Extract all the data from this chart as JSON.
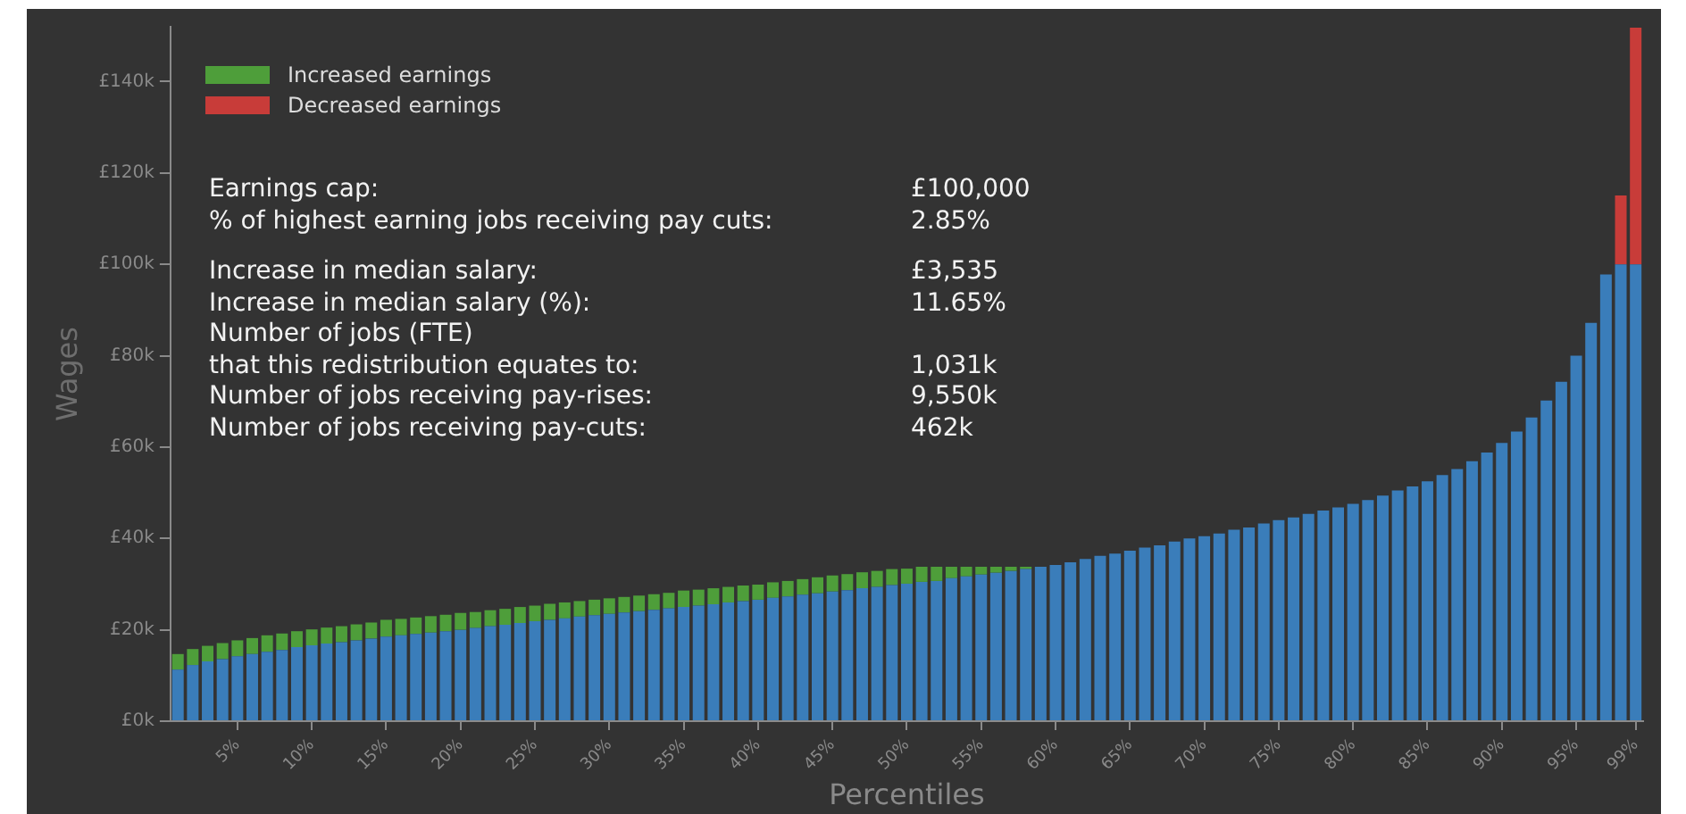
{
  "chart_data": {
    "type": "bar",
    "stacked": true,
    "xlabel": "Percentiles",
    "ylabel": "Wages",
    "legend": "top left",
    "categories": [
      null,
      null,
      null,
      null,
      "5%",
      null,
      null,
      null,
      null,
      "10%",
      null,
      null,
      null,
      null,
      "15%",
      null,
      null,
      null,
      null,
      "20%",
      null,
      null,
      null,
      null,
      "25%",
      null,
      null,
      null,
      null,
      "30%",
      null,
      null,
      null,
      null,
      "35%",
      null,
      null,
      null,
      null,
      "40%",
      null,
      null,
      null,
      null,
      "45%",
      null,
      null,
      null,
      null,
      "50%",
      null,
      null,
      null,
      null,
      "55%",
      null,
      null,
      null,
      null,
      "60%",
      null,
      null,
      null,
      null,
      "65%",
      null,
      null,
      null,
      null,
      "70%",
      null,
      null,
      null,
      null,
      "75%",
      null,
      null,
      null,
      null,
      "80%",
      null,
      null,
      null,
      null,
      "85%",
      null,
      null,
      null,
      null,
      "90%",
      null,
      null,
      null,
      null,
      "95%",
      null,
      null,
      null,
      "99%"
    ],
    "ylim": [
      0,
      152
    ],
    "yticks": [
      {
        "value": 0,
        "label": "£0k"
      },
      {
        "value": 20,
        "label": "£20k"
      },
      {
        "value": 40,
        "label": "£40k"
      },
      {
        "value": 60,
        "label": "£60k"
      },
      {
        "value": 80,
        "label": "£80k"
      },
      {
        "value": 100,
        "label": "£100k"
      },
      {
        "value": 120,
        "label": "£120k"
      },
      {
        "value": 140,
        "label": "£140k"
      }
    ],
    "series": [
      {
        "color": "#3a7dba",
        "values": [
          11.3,
          12.3,
          13.1,
          13.6,
          14.2,
          14.7,
          15.2,
          15.6,
          16.2,
          16.6,
          17.0,
          17.3,
          17.7,
          18.1,
          18.5,
          18.8,
          19.1,
          19.4,
          19.7,
          20.0,
          20.4,
          20.8,
          21.1,
          21.5,
          21.9,
          22.2,
          22.5,
          22.9,
          23.2,
          23.5,
          23.8,
          24.1,
          24.4,
          24.7,
          25.0,
          25.3,
          25.6,
          26.0,
          26.3,
          26.6,
          27.0,
          27.3,
          27.7,
          28.0,
          28.4,
          28.7,
          29.1,
          29.4,
          29.8,
          30.1,
          30.5,
          30.7,
          31.3,
          31.7,
          32.1,
          32.5,
          32.9,
          33.3,
          33.8,
          34.2,
          34.8,
          35.5,
          36.2,
          36.7,
          37.3,
          38.0,
          38.5,
          39.3,
          40.0,
          40.5,
          41.1,
          41.9,
          42.4,
          43.3,
          44.0,
          44.6,
          45.4,
          46.1,
          46.8,
          47.6,
          48.4,
          49.4,
          50.5,
          51.4,
          52.5,
          53.9,
          55.2,
          56.9,
          58.8,
          60.9,
          63.4,
          66.5,
          70.2,
          74.3,
          80.0,
          87.2,
          97.8,
          100,
          100
        ]
      },
      {
        "name": "Increased earnings",
        "color": "#4e9e3a",
        "values": [
          3.4,
          3.5,
          3.4,
          3.5,
          3.5,
          3.5,
          3.6,
          3.6,
          3.5,
          3.5,
          3.5,
          3.5,
          3.5,
          3.5,
          3.7,
          3.6,
          3.6,
          3.6,
          3.6,
          3.7,
          3.5,
          3.5,
          3.5,
          3.5,
          3.4,
          3.5,
          3.5,
          3.4,
          3.4,
          3.4,
          3.4,
          3.4,
          3.4,
          3.4,
          3.6,
          3.5,
          3.5,
          3.4,
          3.4,
          3.3,
          3.4,
          3.4,
          3.4,
          3.5,
          3.5,
          3.5,
          3.5,
          3.5,
          3.5,
          3.3,
          3.3,
          3.1,
          2.5,
          2.1,
          1.7,
          1.3,
          0.9,
          0.5,
          null,
          null,
          null,
          null,
          null,
          null,
          null,
          null,
          null,
          null,
          null,
          null,
          null,
          null,
          null,
          null,
          null,
          null,
          null,
          null,
          null,
          null,
          null,
          null,
          null,
          null,
          null,
          null,
          null,
          null,
          null,
          null,
          null,
          null,
          null,
          null,
          null,
          null,
          null,
          null,
          null
        ]
      },
      {
        "name": "Decreased earnings",
        "color": "#c83c39",
        "values": [
          null,
          null,
          null,
          null,
          null,
          null,
          null,
          null,
          null,
          null,
          null,
          null,
          null,
          null,
          null,
          null,
          null,
          null,
          null,
          null,
          null,
          null,
          null,
          null,
          null,
          null,
          null,
          null,
          null,
          null,
          null,
          null,
          null,
          null,
          null,
          null,
          null,
          null,
          null,
          null,
          null,
          null,
          null,
          null,
          null,
          null,
          null,
          null,
          null,
          null,
          null,
          null,
          null,
          null,
          null,
          null,
          null,
          null,
          null,
          null,
          null,
          null,
          null,
          null,
          null,
          null,
          null,
          null,
          null,
          null,
          null,
          null,
          null,
          null,
          null,
          null,
          null,
          null,
          null,
          null,
          null,
          null,
          null,
          null,
          null,
          null,
          null,
          null,
          null,
          null,
          null,
          null,
          null,
          null,
          null,
          null,
          null,
          15.1,
          51.8
        ]
      }
    ],
    "annotations": [
      "Earnings cap:",
      "£100,000",
      "% of highest earning jobs receiving pay cuts:",
      "2.85%",
      "Increase in median salary:",
      "£3,535",
      "Increase in median salary (%):",
      "11.65%",
      "Number of jobs (FTE)\nthat this redistribution equates to:",
      "1,031k",
      "Number of jobs receiving pay-rises:",
      "9,550k",
      "Number of jobs receiving pay-cuts:",
      "462k"
    ]
  }
}
